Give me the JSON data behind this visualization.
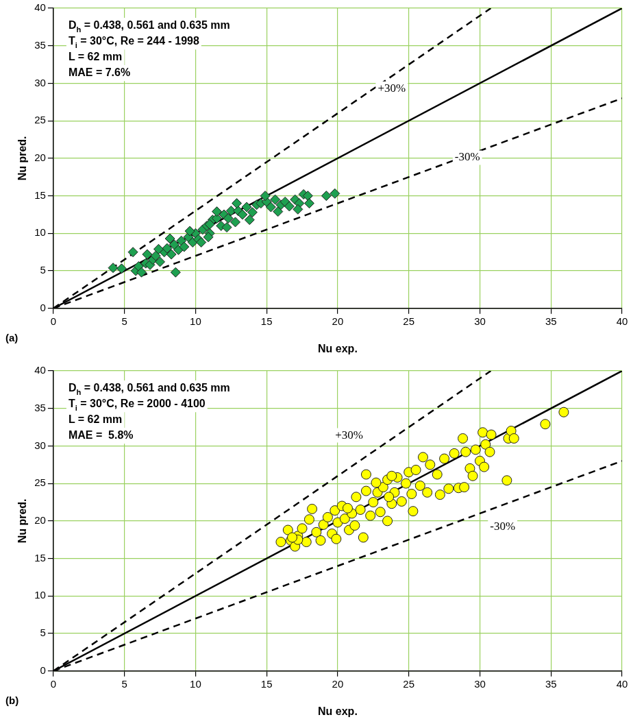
{
  "chart_data": [
    {
      "type": "scatter",
      "xlabel": "Nu exp.",
      "ylabel": "Nu pred.",
      "xlim": [
        0,
        40
      ],
      "ylim": [
        0,
        40
      ],
      "xticks": [
        0,
        5,
        10,
        15,
        20,
        25,
        30,
        35,
        40
      ],
      "yticks": [
        0,
        5,
        10,
        15,
        20,
        25,
        30,
        35,
        40
      ],
      "grid": true,
      "legend": false,
      "annotations": [
        "D$_{h}$ = 0.438, 0.561 and 0.635 mm",
        "T$_{i}$ = 30°C, Re = 244 - 1998",
        "L = 62 mm",
        "MAE = 7.6%",
        "+30%",
        "-30%",
        "(a)"
      ],
      "series": [
        {
          "color": "#1ea050",
          "marker": "diamond",
          "x": [
            4.2,
            4.8,
            5.6,
            5.8,
            6,
            6.2,
            6.5,
            6.8,
            7,
            7.2,
            7.5,
            7.8,
            8,
            8.3,
            8.5,
            8.6,
            8.8,
            9,
            9.2,
            9.5,
            9.8,
            10,
            10.2,
            10.5,
            10.8,
            11,
            11.2,
            11.5,
            11.8,
            12,
            12.3,
            12.5,
            12.8,
            13,
            13.3,
            13.6,
            14,
            14.3,
            14.6,
            15,
            15.3,
            15.6,
            16,
            16.3,
            16.6,
            17,
            17.3,
            17.6,
            17.9,
            18,
            19.2,
            19.8,
            11,
            9.6,
            10.4,
            8.2,
            7.4,
            13.8,
            12.2,
            14.9,
            12.9,
            11.5,
            10.9,
            6.6,
            15.8,
            17.2
          ],
          "values": [
            5.4,
            5.3,
            7.5,
            5,
            5.6,
            4.8,
            6,
            5.8,
            6.5,
            7,
            6.2,
            7.5,
            8,
            7.2,
            8.5,
            4.8,
            7.8,
            9,
            8.2,
            9.5,
            8.8,
            10,
            9.2,
            10.5,
            11,
            10,
            11.8,
            12,
            11,
            12.5,
            12,
            13,
            11.5,
            13,
            12.5,
            13.5,
            12.8,
            13.8,
            14,
            14.2,
            13.5,
            14.5,
            13.8,
            14.2,
            13.6,
            14.5,
            14,
            15.2,
            15,
            14,
            15,
            15.3,
            11.2,
            10.3,
            8.8,
            9.3,
            7.9,
            11.8,
            10.8,
            15,
            14,
            12.9,
            9.5,
            7.2,
            12.9,
            13.2
          ]
        },
        {
          "type": "line",
          "color": "#000000",
          "line_style": "solid",
          "x": [
            0,
            40
          ],
          "values": [
            0,
            40
          ]
        },
        {
          "type": "line",
          "color": "#000000",
          "line_style": "dashed",
          "x": [
            0,
            30.77
          ],
          "values": [
            0,
            40
          ]
        },
        {
          "type": "line",
          "color": "#000000",
          "line_style": "dashed",
          "x": [
            0,
            40
          ],
          "values": [
            0,
            28
          ]
        }
      ]
    },
    {
      "type": "scatter",
      "xlabel": "Nu exp.",
      "ylabel": "Nu pred.",
      "xlim": [
        0,
        40
      ],
      "ylim": [
        0,
        40
      ],
      "xticks": [
        0,
        5,
        10,
        15,
        20,
        25,
        30,
        35,
        40
      ],
      "yticks": [
        0,
        5,
        10,
        15,
        20,
        25,
        30,
        35,
        40
      ],
      "grid": true,
      "legend": false,
      "annotations": [
        "D$_{h}$ = 0.438, 0.561 and 0.635 mm",
        "T$_{i}$ = 30°C, Re = 2000 - 4100",
        "L = 62 mm",
        "MAE =  5.8%",
        "+30%",
        "-30%",
        "(b)"
      ],
      "series": [
        {
          "color": "#ffff00",
          "marker": "circle",
          "x": [
            16,
            16.5,
            16.7,
            17,
            17.2,
            17.5,
            17.8,
            18,
            18.2,
            18.5,
            18.8,
            19,
            19.3,
            19.6,
            19.8,
            20,
            20.3,
            20.5,
            20.8,
            21,
            21.3,
            21.6,
            21.8,
            22,
            22,
            22.3,
            22.5,
            22.8,
            23,
            23.2,
            23.5,
            23.5,
            23.8,
            24,
            24.2,
            24.5,
            24.8,
            25,
            25.2,
            25.3,
            25.5,
            25.8,
            26,
            26.3,
            26.5,
            27,
            27.2,
            27.5,
            27.8,
            28.2,
            28.5,
            28.8,
            28.9,
            29,
            29.3,
            29.5,
            29.7,
            30,
            30.2,
            30.3,
            30.4,
            30.7,
            30.8,
            31.9,
            32,
            32.2,
            32.4,
            34.6,
            35.9,
            23.6,
            21.2,
            19.9,
            17.2,
            20.7,
            23.8,
            22.7,
            16.8
          ],
          "values": [
            17.2,
            18.8,
            17.4,
            16.6,
            18,
            19,
            17.2,
            20.2,
            21.6,
            18.5,
            17.4,
            19.5,
            20.5,
            18.3,
            21.4,
            19.8,
            22,
            20.3,
            18.8,
            21,
            23.2,
            21.5,
            17.8,
            26.2,
            24,
            20.7,
            22.5,
            23.8,
            21.2,
            24.5,
            20,
            25.5,
            22.3,
            23.8,
            25.8,
            22.6,
            25,
            26.5,
            23.6,
            21.3,
            26.8,
            24.7,
            28.5,
            23.8,
            27.5,
            26.2,
            23.5,
            28.3,
            24.3,
            29,
            24.4,
            31,
            24.5,
            29.2,
            27,
            26,
            29.5,
            28,
            31.8,
            27.2,
            30.2,
            29.2,
            31.5,
            25.4,
            31,
            32,
            31,
            32.9,
            34.5,
            23.2,
            19.4,
            17.6,
            17.5,
            21.7,
            26,
            25.1,
            17.8
          ]
        },
        {
          "type": "line",
          "color": "#000000",
          "line_style": "solid",
          "x": [
            0,
            40
          ],
          "values": [
            0,
            40
          ]
        },
        {
          "type": "line",
          "color": "#000000",
          "line_style": "dashed",
          "x": [
            0,
            30.77
          ],
          "values": [
            0,
            40
          ]
        },
        {
          "type": "line",
          "color": "#000000",
          "line_style": "dashed",
          "x": [
            0,
            40
          ],
          "values": [
            0,
            28
          ]
        }
      ]
    }
  ]
}
